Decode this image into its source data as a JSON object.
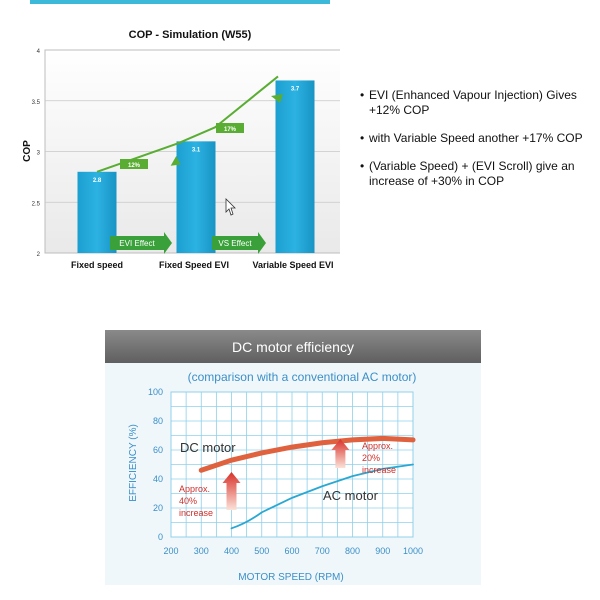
{
  "chart_data": [
    {
      "type": "bar",
      "title": "COP - Simulation (W55)",
      "xlabel": "",
      "ylabel": "COP",
      "categories": [
        "Fixed speed",
        "Fixed Speed EVI",
        "Variable Speed EVI"
      ],
      "values": [
        2.8,
        3.1,
        3.7
      ],
      "ylim": [
        2,
        4
      ],
      "yticks": [
        "2",
        "2.5",
        "3",
        "3.5",
        "4"
      ],
      "increase_labels": [
        "12%",
        "17%"
      ],
      "arrow_labels": [
        "EVI Effect",
        "VS Effect"
      ],
      "grid": true
    },
    {
      "type": "line",
      "header": "DC motor efficiency",
      "subtitle": "(comparison with a conventional AC motor)",
      "xlabel": "MOTOR SPEED (RPM)",
      "ylabel": "EFFICIENCY (%)",
      "xlim": [
        200,
        1000
      ],
      "ylim": [
        0,
        100
      ],
      "xticks": [
        "200",
        "300",
        "400",
        "500",
        "600",
        "700",
        "800",
        "900",
        "1000"
      ],
      "yticks": [
        "0",
        "20",
        "40",
        "60",
        "80",
        "100"
      ],
      "series": [
        {
          "name": "DC motor",
          "color": "#e0613d",
          "x": [
            300,
            400,
            500,
            600,
            700,
            800,
            900,
            1000
          ],
          "y": [
            46,
            53,
            58,
            62,
            65,
            67,
            68,
            67
          ]
        },
        {
          "name": "AC motor",
          "color": "#2aa8d2",
          "x": [
            400,
            500,
            600,
            700,
            800,
            900,
            1000
          ],
          "y": [
            6,
            17,
            27,
            35,
            42,
            47,
            50
          ]
        }
      ],
      "annotations": [
        {
          "lines": [
            "Approx.",
            "40%",
            "increase"
          ]
        },
        {
          "lines": [
            "Approx.",
            "20%",
            "increase"
          ]
        }
      ]
    }
  ],
  "bullets": [
    "EVI (Enhanced Vapour Injection) Gives +12%   COP",
    "with Variable Speed another +17%  COP",
    "(Variable Speed) + (EVI Scroll) give an increase of +30% in   COP"
  ]
}
